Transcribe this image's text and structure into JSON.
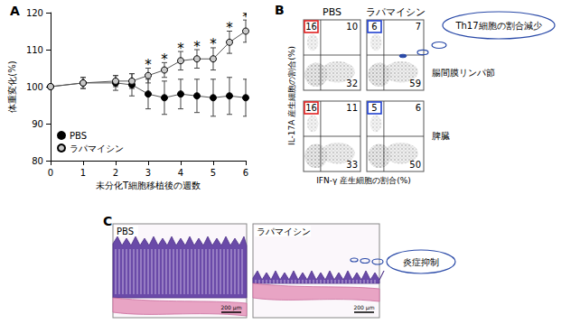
{
  "chart_data": {
    "type": "line",
    "title": "A",
    "x_label": "未分化T細胞移植後の週数",
    "y_label": "体重変化(%)",
    "x": [
      0,
      1,
      2,
      2.5,
      3,
      3.5,
      4,
      4.5,
      5,
      5.5,
      6
    ],
    "xlim": [
      0,
      6
    ],
    "xticks": [
      0,
      1,
      2,
      3,
      4,
      5,
      6
    ],
    "ylim": [
      80,
      120
    ],
    "yticks": [
      80,
      90,
      100,
      110,
      120
    ],
    "grid": false,
    "legend": "lower left",
    "series": [
      {
        "name": "PBS",
        "color": "#000000",
        "marker": "circle",
        "values": [
          100,
          101,
          101,
          100.5,
          98,
          97,
          98,
          97.5,
          97,
          97.5,
          97
        ],
        "errors": [
          0,
          1.5,
          2,
          3,
          4,
          4.5,
          4,
          4.5,
          5,
          5,
          5
        ]
      },
      {
        "name": "ラパマイシン",
        "color": "#c8c8c8",
        "marker": "circle",
        "values": [
          100,
          101,
          101.5,
          101.5,
          103,
          104.5,
          107,
          107.5,
          107.5,
          112,
          115
        ],
        "errors": [
          0,
          1.5,
          1.5,
          2,
          2,
          2,
          2.5,
          2.5,
          3,
          3,
          3
        ],
        "annotations": [
          null,
          null,
          null,
          null,
          "*",
          "*",
          "*",
          "*",
          "*",
          "*",
          "*"
        ]
      }
    ]
  },
  "flow_cytometry": {
    "title": "B",
    "columns": [
      "PBS",
      "ラパマイシン"
    ],
    "rows": [
      {
        "label": "腸間膜リンパ節",
        "quadrants": [
          {
            "upper_left": 16,
            "upper_right": 10,
            "lower_right": 32
          },
          {
            "upper_left": 6,
            "upper_right": 7,
            "lower_right": 59
          }
        ]
      },
      {
        "label": "脾臓",
        "quadrants": [
          {
            "upper_left": 16,
            "upper_right": 11,
            "lower_right": 33
          },
          {
            "upper_left": 5,
            "upper_right": 6,
            "lower_right": 50
          }
        ]
      }
    ],
    "y_label": "IL-17A 産生細胞の割合(%)",
    "x_label": "IFN-γ 産生細胞の割合(%)",
    "callout": "Th17細胞の割合減少"
  },
  "histology": {
    "title": "C",
    "panels": [
      {
        "label": "PBS",
        "scale_bar": "200 μm"
      },
      {
        "label": "ラパマイシン",
        "scale_bar": "200 μm"
      }
    ],
    "callout": "炎症抑制"
  }
}
